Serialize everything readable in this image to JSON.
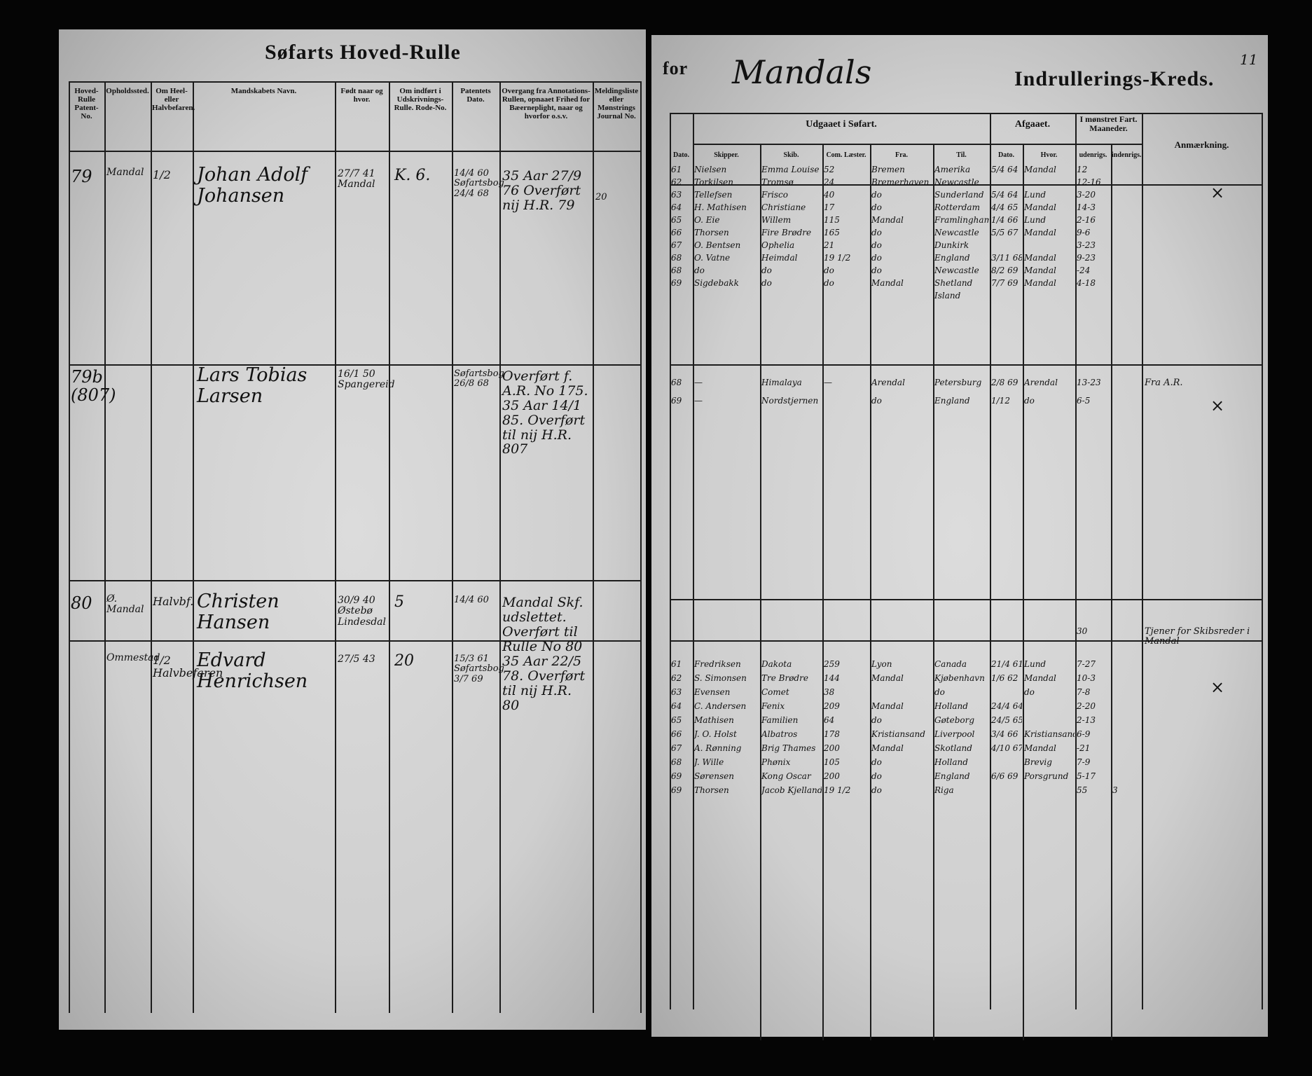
{
  "left_page": {
    "title": "Søfarts Hoved-Rulle",
    "columns": [
      "Hoved-Rulle Patent-No.",
      "Opholdssted.",
      "Om Heel- eller Halvbefaren.",
      "Mandskabets Navn.",
      "Født naar og hvor.",
      "Om indført i Udskrivnings-Rulle. Rode-No.",
      "Patentets Dato.",
      "Overgang fra Annotations-Rullen, opnaaet Frihed for Bæerneplight, naar og hvorfor o.s.v.",
      "Meldingsliste eller Mønstrings Journal No."
    ]
  },
  "right_page": {
    "title_for": "for",
    "district": "Mandals",
    "title": "Indrullerings-Kreds.",
    "page_number": "11",
    "group_sailing": "Udgaaet i Søfart.",
    "group_departed": "Afgaaet.",
    "group_months": "I mønstret Fart. Maaneder.",
    "columns": [
      "Dato.",
      "Skipper.",
      "Skib.",
      "Com. Læster.",
      "Fra.",
      "Til.",
      "Dato.",
      "Hvor.",
      "udenrigs.",
      "indenrigs.",
      "Anmærkning."
    ]
  },
  "entries": [
    {
      "number": "79",
      "residence": "Mandal",
      "rating": "1/2",
      "name": "Johan Adolf Johansen",
      "born": "27/7 41 Mandal",
      "rode": "K. 6.",
      "patent": "14/4 60 Søfartsbog 24/4 68",
      "transfer": "35 Aar 27/9 76 Overført nij H.R. 79",
      "journal": "20",
      "mark": "×",
      "voyages": [
        {
          "date": "61",
          "skipper": "Nielsen",
          "ship": "Emma Louise",
          "lasts": "52",
          "from": "Bremen",
          "to": "Amerika",
          "dep_date": "5/4 64",
          "dep_place": "Mandal",
          "abroad": "12"
        },
        {
          "date": "62",
          "skipper": "Torkilsen",
          "ship": "Tromsø",
          "lasts": "24",
          "from": "Bremerhaven",
          "to": "Newcastle",
          "abroad": "12-16"
        },
        {
          "date": "63",
          "skipper": "Tellefsen",
          "ship": "Frisco",
          "lasts": "40",
          "from": "do",
          "to": "Sunderland",
          "dep_date": "5/4 64",
          "dep_place": "Lund",
          "abroad": "3-20"
        },
        {
          "date": "64",
          "skipper": "H. Mathisen",
          "ship": "Christiane",
          "lasts": "17",
          "from": "do",
          "to": "Rotterdam",
          "dep_date": "4/4 65",
          "dep_place": "Mandal",
          "abroad": "14-3"
        },
        {
          "date": "65",
          "skipper": "O. Eie",
          "ship": "Willem",
          "lasts": "115",
          "from": "Mandal",
          "to": "Framlingham",
          "dep_date": "1/4 66",
          "dep_place": "Lund",
          "abroad": "2-16"
        },
        {
          "date": "66",
          "skipper": "Thorsen",
          "ship": "Fire Brødre",
          "lasts": "165",
          "from": "do",
          "to": "Newcastle",
          "dep_date": "5/5 67",
          "dep_place": "Mandal",
          "abroad": "9-6"
        },
        {
          "date": "67",
          "skipper": "O. Bentsen",
          "ship": "Ophelia",
          "lasts": "21",
          "from": "do",
          "to": "Dunkirk",
          "abroad": "3-23"
        },
        {
          "date": "68",
          "skipper": "O. Vatne",
          "ship": "Heimdal",
          "lasts": "19 1/2",
          "from": "do",
          "to": "England",
          "dep_date": "3/11 68",
          "dep_place": "Mandal",
          "abroad": "9-23"
        },
        {
          "date": "68",
          "skipper": "do",
          "ship": "do",
          "lasts": "do",
          "from": "do",
          "to": "Newcastle",
          "dep_date": "8/2 69",
          "dep_place": "Mandal",
          "abroad": "-24"
        },
        {
          "date": "69",
          "skipper": "Sigdebakk",
          "ship": "do",
          "lasts": "do",
          "from": "Mandal",
          "to": "Shetland",
          "dep_date": "7/7 69",
          "dep_place": "Mandal",
          "abroad": "4-18"
        },
        {
          "to": "Island"
        }
      ]
    },
    {
      "number": "79b (807)",
      "name": "Lars Tobias Larsen",
      "born": "16/1 50 Spangereid",
      "patent": "Søfartsbog 26/8 68",
      "transfer": "Overført f. A.R. No 175. 35 Aar 14/1 85. Overført til nij H.R. 807",
      "remark": "Fra A.R.",
      "mark": "×",
      "voyages": [
        {
          "date": "68",
          "skipper": "—",
          "ship": "Himalaya",
          "lasts": "—",
          "from": "Arendal",
          "to": "Petersburg",
          "dep_date": "2/8 69",
          "dep_place": "Arendal",
          "abroad": "13-23"
        },
        {
          "date": "69",
          "skipper": "—",
          "ship": "Nordstjernen",
          "from": "do",
          "to": "England",
          "dep_date": "1/12",
          "dep_place": "do",
          "abroad": "6-5"
        }
      ]
    },
    {
      "number": "80",
      "residence": "Ø. Mandal",
      "rating": "Halvbf.",
      "name": "Christen Hansen",
      "born": "30/9 40 Østebø Lindesdal",
      "rode": "5",
      "patent": "14/4 60",
      "transfer": "Mandal Skf. udslettet. Overført til Rulle No 80",
      "remark": "Tjener for Skibsreder i Mandal",
      "voyages": [
        {
          "abroad": "30"
        }
      ]
    },
    {
      "residence": "Ommestad",
      "rating": "1/2 Halvbefaren",
      "name": "Edvard Henrichsen",
      "born": "27/5 43",
      "rode": "20",
      "patent": "15/3 61 Søfartsbog 3/7 69",
      "transfer": "35 Aar 22/5 78. Overført til nij H.R. 80",
      "mark": "×",
      "voyages": [
        {
          "date": "61",
          "skipper": "Fredriksen",
          "ship": "Dakota",
          "lasts": "259",
          "from": "Lyon",
          "to": "Canada",
          "dep_date": "21/4 61",
          "dep_place": "Lund",
          "abroad": "7-27"
        },
        {
          "date": "62",
          "skipper": "S. Simonsen",
          "ship": "Tre Brødre",
          "lasts": "144",
          "from": "Mandal",
          "to": "Kjøbenhavn",
          "dep_date": "1/6 62",
          "dep_place": "Mandal",
          "abroad": "10-3"
        },
        {
          "date": "63",
          "skipper": "Evensen",
          "ship": "Comet",
          "lasts": "38",
          "to": "do",
          "dep_place": "do",
          "abroad": "7-8"
        },
        {
          "date": "64",
          "skipper": "C. Andersen",
          "ship": "Fenix",
          "lasts": "209",
          "from": "Mandal",
          "to": "Holland",
          "dep_date": "24/4 64",
          "abroad": "2-20"
        },
        {
          "date": "65",
          "skipper": "Mathisen",
          "ship": "Familien",
          "lasts": "64",
          "from": "do",
          "to": "Gøteborg",
          "dep_date": "24/5 65",
          "abroad": "2-13"
        },
        {
          "date": "66",
          "skipper": "J. O. Holst",
          "ship": "Albatros",
          "lasts": "178",
          "from": "Kristiansand",
          "to": "Liverpool",
          "dep_date": "3/4 66",
          "dep_place": "Kristiansand",
          "abroad": "6-9"
        },
        {
          "date": "67",
          "skipper": "A. Rønning",
          "ship": "Brig Thames",
          "lasts": "200",
          "from": "Mandal",
          "to": "Skotland",
          "dep_date": "4/10 67",
          "dep_place": "Mandal",
          "abroad": "-21"
        },
        {
          "date": "68",
          "skipper": "J. Wille",
          "ship": "Phønix",
          "lasts": "105",
          "from": "do",
          "to": "Holland",
          "dep_place": "Brevig",
          "abroad": "7-9"
        },
        {
          "date": "69",
          "skipper": "Sørensen",
          "ship": "Kong Oscar",
          "lasts": "200",
          "from": "do",
          "to": "England",
          "dep_date": "6/6 69",
          "dep_place": "Porsgrund",
          "abroad": "5-17"
        },
        {
          "date": "69",
          "skipper": "Thorsen",
          "ship": "Jacob Kjelland",
          "lasts": "19 1/2",
          "from": "do",
          "to": "Riga",
          "abroad": "55",
          "domestic": "3"
        }
      ]
    }
  ]
}
